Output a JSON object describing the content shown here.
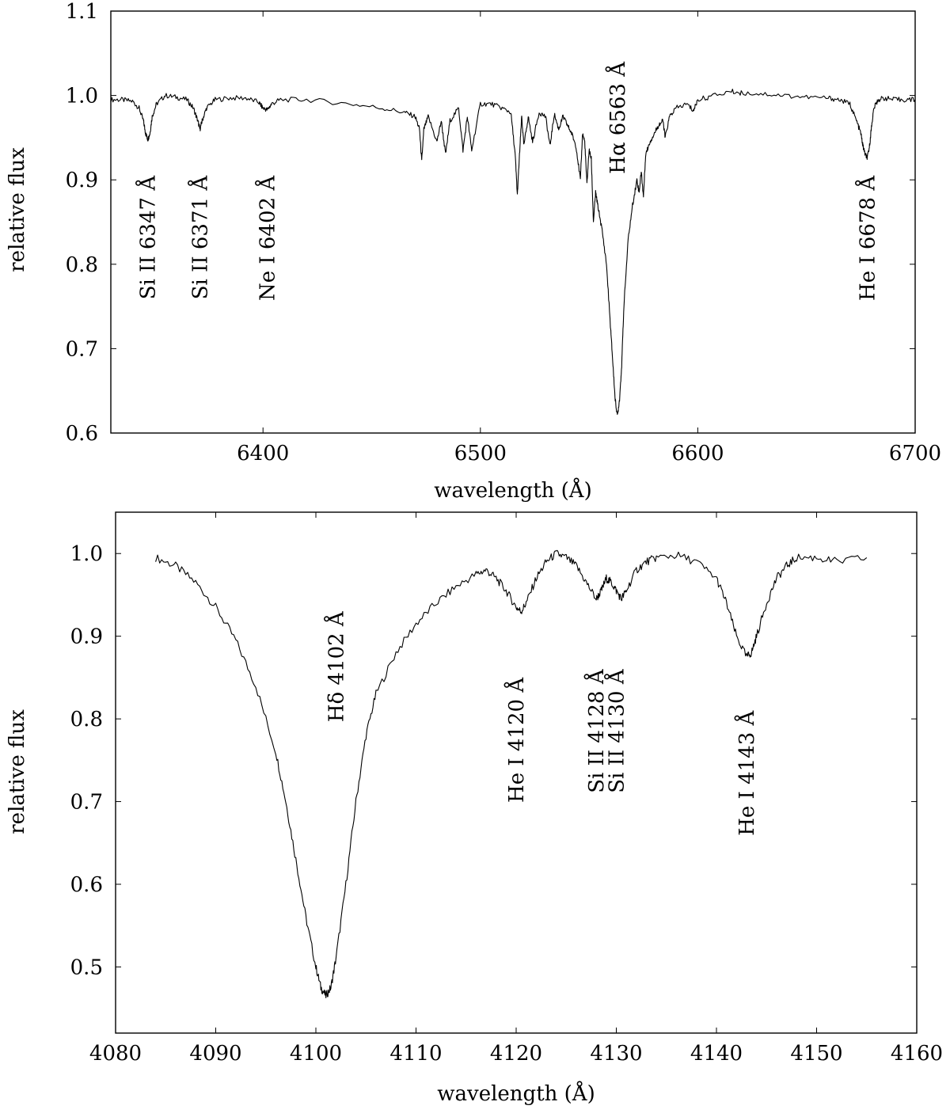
{
  "chart_data": [
    {
      "type": "line",
      "xlabel": "wavelength (Å)",
      "ylabel": "relative flux",
      "xlim": [
        6330,
        6700
      ],
      "ylim": [
        0.6,
        1.1
      ],
      "xticks": [
        6400,
        6500,
        6600,
        6700
      ],
      "yticks": [
        0.6,
        0.7,
        0.8,
        0.9,
        1.0,
        1.1
      ],
      "xtick_labels": [
        "6400",
        "6500",
        "6600",
        "6700"
      ],
      "ytick_labels": [
        "0.6",
        "0.7",
        "0.8",
        "0.9",
        "1.0",
        "1.1"
      ],
      "series": [
        {
          "x": [
            6330,
            6335,
            6340,
            6343,
            6345,
            6346,
            6347,
            6348,
            6349,
            6351,
            6355,
            6360,
            6365,
            6368,
            6370,
            6371,
            6372,
            6374,
            6378,
            6385,
            6392,
            6398,
            6400,
            6402,
            6404,
            6408,
            6420,
            6440,
            6455,
            6465,
            6470,
            6472,
            6473,
            6474,
            6476,
            6480,
            6482,
            6484,
            6486,
            6490,
            6492,
            6494,
            6496,
            6500,
            6505,
            6510,
            6514,
            6516,
            6517,
            6518,
            6519,
            6520,
            6522,
            6524,
            6527,
            6530,
            6532,
            6534,
            6536,
            6538,
            6540,
            6542,
            6544,
            6546,
            6547,
            6548,
            6549,
            6550,
            6551,
            6552,
            6553,
            6554,
            6556,
            6558,
            6560,
            6561,
            6562,
            6563,
            6564,
            6565,
            6566,
            6568,
            6570,
            6572,
            6573,
            6574,
            6575,
            6576,
            6578,
            6580,
            6582,
            6584,
            6585,
            6587,
            6590,
            6595,
            6598,
            6600,
            6605,
            6615,
            6620,
            6630,
            6640,
            6650,
            6660,
            6665,
            6670,
            6673,
            6675,
            6676,
            6677,
            6678,
            6679,
            6680,
            6681,
            6683,
            6686,
            6690,
            6695,
            6700
          ],
          "y": [
            0.995,
            0.995,
            0.993,
            0.985,
            0.97,
            0.955,
            0.948,
            0.955,
            0.975,
            0.99,
            1.0,
            0.998,
            0.995,
            0.985,
            0.97,
            0.96,
            0.97,
            0.985,
            0.995,
            0.997,
            0.997,
            0.992,
            0.985,
            0.983,
            0.99,
            0.995,
            0.995,
            0.99,
            0.985,
            0.98,
            0.975,
            0.96,
            0.922,
            0.96,
            0.975,
            0.945,
            0.97,
            0.93,
            0.97,
            0.985,
            0.935,
            0.975,
            0.935,
            0.99,
            0.99,
            0.985,
            0.98,
            0.93,
            0.882,
            0.93,
            0.975,
            0.94,
            0.975,
            0.945,
            0.98,
            0.975,
            0.94,
            0.978,
            0.96,
            0.975,
            0.965,
            0.955,
            0.94,
            0.9,
            0.955,
            0.945,
            0.895,
            0.935,
            0.925,
            0.85,
            0.885,
            0.87,
            0.84,
            0.8,
            0.72,
            0.68,
            0.64,
            0.62,
            0.64,
            0.68,
            0.75,
            0.83,
            0.87,
            0.9,
            0.885,
            0.91,
            0.88,
            0.93,
            0.945,
            0.955,
            0.965,
            0.97,
            0.95,
            0.975,
            0.985,
            0.99,
            0.982,
            0.995,
            0.998,
            1.005,
            1.003,
            1.002,
            1.0,
            0.998,
            0.997,
            0.995,
            0.99,
            0.97,
            0.955,
            0.94,
            0.93,
            0.926,
            0.94,
            0.965,
            0.985,
            0.995,
            0.997,
            0.995,
            0.995,
            0.995
          ]
        }
      ],
      "annotations": [
        {
          "text": "Si II 6347 Å",
          "x": 6347
        },
        {
          "text": "Si II 6371 Å",
          "x": 6371
        },
        {
          "text": "Ne I 6402 Å",
          "x": 6402
        },
        {
          "text": "Hα 6563 Å",
          "x": 6563
        },
        {
          "text": "He I 6678 Å",
          "x": 6678
        }
      ],
      "grid": false
    },
    {
      "type": "line",
      "xlabel": "wavelength (Å)",
      "ylabel": "relative flux",
      "xlim": [
        4080,
        4160
      ],
      "ylim": [
        0.42,
        1.05
      ],
      "xticks": [
        4080,
        4090,
        4100,
        4110,
        4120,
        4130,
        4140,
        4150,
        4160
      ],
      "yticks": [
        0.5,
        0.6,
        0.7,
        0.8,
        0.9,
        1.0
      ],
      "xtick_labels": [
        "4080",
        "4090",
        "4100",
        "4110",
        "4120",
        "4130",
        "4140",
        "4150",
        "4160"
      ],
      "ytick_labels": [
        "0.5",
        "0.6",
        "0.7",
        "0.8",
        "0.9",
        "1.0"
      ],
      "series": [
        {
          "x": [
            4084,
            4086,
            4088,
            4090,
            4092,
            4094,
            4096,
            4097,
            4098,
            4099,
            4100,
            4100.5,
            4101,
            4101.5,
            4102,
            4103,
            4104,
            4105,
            4106,
            4108,
            4110,
            4112,
            4114,
            4116,
            4117,
            4118,
            4119,
            4120,
            4120.5,
            4121,
            4122,
            4123,
            4124,
            4125,
            4126,
            4127,
            4128,
            4128.5,
            4129,
            4129.5,
            4130,
            4130.5,
            4131,
            4132,
            4133,
            4134,
            4136,
            4138,
            4140,
            4141,
            4142,
            4143,
            4143.5,
            4144,
            4145,
            4146,
            4147,
            4148,
            4150,
            4152,
            4155
          ],
          "y": [
            0.995,
            0.985,
            0.965,
            0.935,
            0.895,
            0.84,
            0.76,
            0.7,
            0.63,
            0.56,
            0.5,
            0.475,
            0.465,
            0.475,
            0.51,
            0.6,
            0.7,
            0.78,
            0.83,
            0.88,
            0.915,
            0.94,
            0.96,
            0.975,
            0.98,
            0.97,
            0.955,
            0.935,
            0.93,
            0.94,
            0.97,
            0.99,
            1.0,
            0.995,
            0.985,
            0.965,
            0.945,
            0.955,
            0.97,
            0.965,
            0.955,
            0.945,
            0.955,
            0.98,
            0.99,
            0.995,
            0.998,
            0.99,
            0.97,
            0.94,
            0.9,
            0.875,
            0.88,
            0.9,
            0.94,
            0.97,
            0.985,
            0.995,
            0.995,
            0.99,
            0.995
          ]
        }
      ],
      "annotations": [
        {
          "text": "Hδ 4102 Å",
          "x": 4102
        },
        {
          "text": "He I 4120 Å",
          "x": 4120
        },
        {
          "text": "Si II 4128 Å",
          "x": 4128
        },
        {
          "text": "Si II 4130 Å",
          "x": 4130
        },
        {
          "text": "He I 4143 Å",
          "x": 4143
        }
      ],
      "grid": false
    }
  ]
}
